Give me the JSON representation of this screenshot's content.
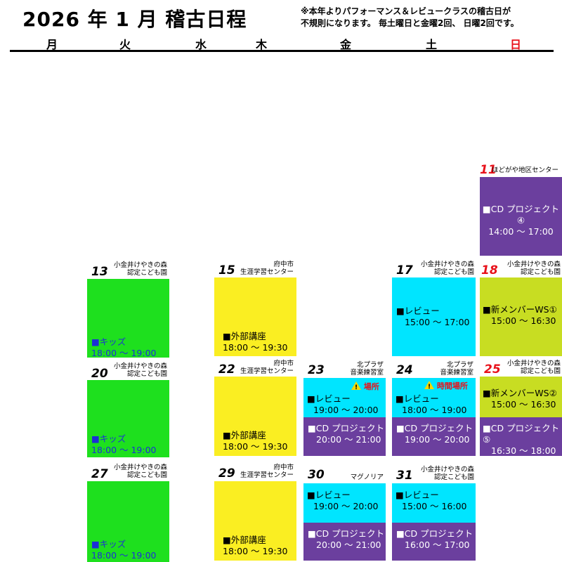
{
  "header": {
    "title": "2026 年 1 月 稽古日程",
    "note_line1": "※本年よりパフォーマンス＆レビュークラスの稽古日が",
    "note_line2": "不規則になります。 毎土曜日と金曜2回、 日曜2回です。"
  },
  "weekdays": [
    "月",
    "火",
    "水",
    "木",
    "金",
    "土",
    "日"
  ],
  "colors": {
    "kids": "#1ee01e",
    "external": "#faee22",
    "review": "#00e5ff",
    "cd_project": "#6b3f9e",
    "new_member": "#c8dd22",
    "sunday": "#e8121b"
  },
  "days": {
    "d11": {
      "num": "11",
      "loc": "ほどがや地区センター",
      "ev1_title": "■CD プロジェクト④",
      "ev1_time": "14:00 ～ 17:00"
    },
    "d13": {
      "num": "13",
      "loc1": "小金井けやきの森",
      "loc2": "認定こども園",
      "ev1_title": "■キッズ",
      "ev1_time": "18:00 ～ 19:00"
    },
    "d15": {
      "num": "15",
      "loc1": "府中市",
      "loc2": "生涯学習センター",
      "ev1_title": "■外部講座",
      "ev1_time": "18:00 ～ 19:30"
    },
    "d17": {
      "num": "17",
      "loc1": "小金井けやきの森",
      "loc2": "認定こども園",
      "ev1_title": "■レビュー",
      "ev1_time": "15:00 ～ 17:00"
    },
    "d18": {
      "num": "18",
      "loc1": "小金井けやきの森",
      "loc2": "認定こども園",
      "ev1_title": "■新メンバーWS①",
      "ev1_time": "15:00 ～ 16:30"
    },
    "d20": {
      "num": "20",
      "loc1": "小金井けやきの森",
      "loc2": "認定こども園",
      "ev1_title": "■キッズ",
      "ev1_time": "18:00 ～ 19:00"
    },
    "d22": {
      "num": "22",
      "loc1": "府中市",
      "loc2": "生涯学習センター",
      "ev1_title": "■外部講座",
      "ev1_time": "18:00 ～ 19:30"
    },
    "d23": {
      "num": "23",
      "loc1": "北プラザ",
      "loc2": "音楽練習室",
      "warning": "場所",
      "ev1_title": "■レビュー",
      "ev1_time": "19:00 ～ 20:00",
      "ev2_title": "■CD プロジェクト",
      "ev2_time": "20:00 ～ 21:00"
    },
    "d24": {
      "num": "24",
      "loc1": "北プラザ",
      "loc2": "音楽練習室",
      "warning": "時間場所",
      "ev1_title": "■レビュー",
      "ev1_time": "18:00 ～ 19:00",
      "ev2_title": "■CD プロジェクト",
      "ev2_time": "19:00 ～ 20:00"
    },
    "d25": {
      "num": "25",
      "loc1": "小金井けやきの森",
      "loc2": "認定こども園",
      "ev1_title": "■新メンバーWS②",
      "ev1_time": "15:00 ～ 16:30",
      "ev2_title": "■CD プロジェクト⑤",
      "ev2_time": "16:30 ～ 18:00"
    },
    "d27": {
      "num": "27",
      "loc1": "小金井けやきの森",
      "loc2": "認定こども園",
      "ev1_title": "■キッズ",
      "ev1_time": "18:00 ～ 19:00"
    },
    "d29": {
      "num": "29",
      "loc1": "府中市",
      "loc2": "生涯学習センター",
      "ev1_title": "■外部講座",
      "ev1_time": "18:00 ～ 19:30"
    },
    "d30": {
      "num": "30",
      "loc": "マグノリア",
      "ev1_title": "■レビュー",
      "ev1_time": "19:00 ～ 20:00",
      "ev2_title": "■CD プロジェクト",
      "ev2_time": "20:00 ～ 21:00"
    },
    "d31": {
      "num": "31",
      "loc1": "小金井けやきの森",
      "loc2": "認定こども園",
      "ev1_title": "■レビュー",
      "ev1_time": "15:00 ～ 16:00",
      "ev2_title": "■CD プロジェクト",
      "ev2_time": "16:00 ～ 17:00"
    }
  }
}
